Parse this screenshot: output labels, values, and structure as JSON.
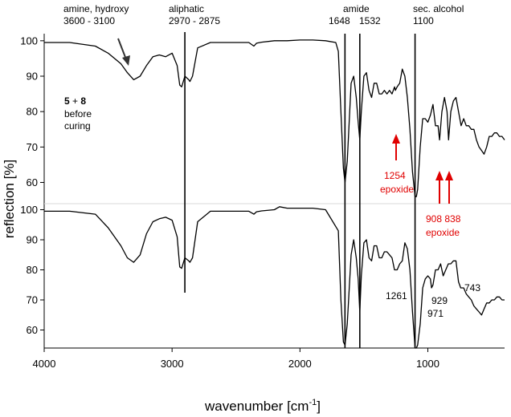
{
  "chart_data": {
    "type": "line",
    "xlabel": "wavenumber [cm",
    "xlabel_sup": "-1",
    "xlabel_close": "]",
    "ylabel": "reflection [%]",
    "x_ticks": [
      "4000",
      "3000",
      "2000",
      "1000"
    ],
    "x_tick_values": [
      4000,
      3000,
      2000,
      1000
    ],
    "xlim": [
      4000,
      400
    ],
    "panels": [
      {
        "name": "top",
        "ylim": [
          54,
          102
        ],
        "y_ticks": [
          "60",
          "70",
          "80",
          "90",
          "100"
        ],
        "y_tick_values": [
          60,
          70,
          80,
          90,
          100
        ],
        "x": [
          4000,
          3800,
          3600,
          3500,
          3400,
          3350,
          3300,
          3250,
          3200,
          3150,
          3100,
          3050,
          3000,
          2960,
          2940,
          2925,
          2900,
          2870,
          2860,
          2840,
          2800,
          2700,
          2500,
          2400,
          2360,
          2340,
          2300,
          2200,
          2100,
          2000,
          1900,
          1800,
          1720,
          1700,
          1680,
          1660,
          1648,
          1630,
          1600,
          1580,
          1560,
          1545,
          1532,
          1520,
          1500,
          1480,
          1460,
          1440,
          1420,
          1400,
          1380,
          1360,
          1340,
          1320,
          1300,
          1280,
          1260,
          1254,
          1240,
          1220,
          1200,
          1180,
          1160,
          1140,
          1120,
          1100,
          1090,
          1080,
          1060,
          1040,
          1020,
          1000,
          980,
          960,
          940,
          920,
          908,
          890,
          870,
          850,
          838,
          820,
          800,
          780,
          760,
          740,
          720,
          700,
          680,
          660,
          640,
          620,
          600,
          580,
          560,
          540,
          520,
          500,
          480,
          460,
          440,
          420,
          400
        ],
        "y": [
          99.5,
          99.5,
          98.5,
          96.5,
          93.5,
          91,
          89,
          90,
          93,
          95.5,
          96,
          95.5,
          96.5,
          93,
          87.5,
          87,
          90,
          89,
          88.5,
          90,
          98,
          99.5,
          99.5,
          99.5,
          98.5,
          99.3,
          99.6,
          100,
          100,
          100.2,
          100.2,
          100,
          99.5,
          97,
          80,
          64,
          60,
          66,
          88,
          90,
          84,
          77,
          72,
          80,
          90,
          91,
          86,
          84,
          88,
          88,
          85,
          85,
          86,
          85,
          86,
          85,
          87,
          86,
          87,
          88,
          92,
          90,
          84,
          75,
          63,
          56,
          56,
          58,
          70,
          78,
          78,
          77,
          79,
          82,
          76,
          76,
          72,
          80,
          84,
          80,
          72,
          80,
          83,
          84,
          80,
          76,
          78,
          76,
          76,
          75,
          75,
          72,
          70,
          69,
          68,
          70,
          73,
          73,
          74,
          74,
          73,
          73,
          72
        ],
        "color": "#000000"
      },
      {
        "name": "bottom",
        "ylim": [
          54,
          102
        ],
        "y_ticks": [
          "60",
          "70",
          "80",
          "90",
          "100"
        ],
        "y_tick_values": [
          60,
          70,
          80,
          90,
          100
        ],
        "x": [
          4000,
          3800,
          3600,
          3500,
          3400,
          3350,
          3300,
          3250,
          3200,
          3150,
          3100,
          3050,
          3000,
          2960,
          2940,
          2925,
          2900,
          2870,
          2860,
          2840,
          2800,
          2700,
          2500,
          2400,
          2360,
          2340,
          2300,
          2200,
          2160,
          2100,
          2000,
          1900,
          1800,
          1700,
          1680,
          1660,
          1648,
          1630,
          1600,
          1580,
          1560,
          1545,
          1532,
          1520,
          1500,
          1480,
          1460,
          1440,
          1420,
          1400,
          1380,
          1360,
          1340,
          1320,
          1300,
          1280,
          1261,
          1240,
          1220,
          1200,
          1180,
          1160,
          1140,
          1120,
          1100,
          1090,
          1080,
          1060,
          1040,
          1020,
          1000,
          980,
          971,
          960,
          940,
          929,
          920,
          900,
          880,
          860,
          840,
          820,
          800,
          780,
          760,
          743,
          720,
          700,
          680,
          660,
          640,
          620,
          600,
          580,
          560,
          540,
          520,
          500,
          480,
          460,
          440,
          420,
          400
        ],
        "y": [
          99.5,
          99.5,
          98.5,
          94,
          88,
          84,
          82.5,
          85,
          92,
          96,
          97,
          97.5,
          96.5,
          91,
          81,
          80.5,
          84,
          83,
          82.5,
          84,
          96,
          99.5,
          99.5,
          99.5,
          98.5,
          99.3,
          99.6,
          100,
          101,
          100.5,
          100.5,
          100.5,
          100,
          93,
          70,
          56,
          55,
          62,
          85,
          90,
          84,
          77,
          66,
          78,
          89,
          90,
          84,
          83,
          88,
          88,
          84,
          84,
          86,
          86,
          85,
          84,
          80,
          80,
          82,
          83,
          89,
          87,
          80,
          66,
          54,
          54,
          55,
          62,
          74,
          77,
          78,
          77,
          74,
          75,
          80,
          80,
          80,
          82,
          78,
          80,
          82,
          82,
          83,
          83,
          76,
          74,
          74,
          72,
          71,
          70,
          68,
          67,
          66,
          65,
          67,
          69,
          69,
          70,
          70,
          71,
          71,
          70,
          70
        ],
        "color": "#000000"
      }
    ],
    "vertical_lines": [
      2900,
      1648,
      1532,
      1100
    ],
    "annotations": {
      "amine_title": "amine, hydroxy",
      "amine_range": "3600 - 3100",
      "aliphatic_title": "aliphatic",
      "aliphatic_range": "2970 - 2875",
      "amide_title": "amide",
      "amide_1648": "1648",
      "amide_1532": "1532",
      "alcohol_title": "sec. alcohol",
      "alcohol_1100": "1100",
      "sample_bold_a": "5",
      "sample_plus": " + ",
      "sample_bold_b": "8",
      "sample_line2": "before",
      "sample_line3": "curing",
      "epoxide1_value": "1254",
      "epoxide1_label": "epoxide",
      "epoxide2_value": "908 838",
      "epoxide2_label": "epoxide",
      "peak_1261": "1261",
      "peak_743": "743",
      "peak_929": "929",
      "peak_971": "971"
    },
    "colors": {
      "spectrum": "#000000",
      "epoxide_arrows": "#e00000",
      "divider": "#d8d8d8"
    },
    "grid": false
  }
}
